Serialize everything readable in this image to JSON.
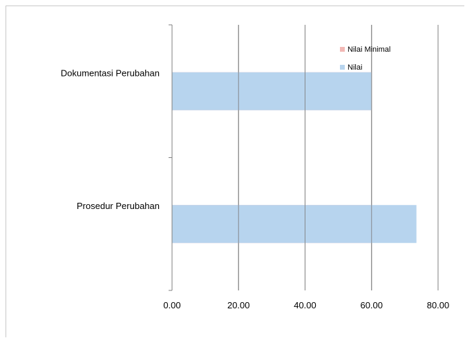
{
  "chart_data": {
    "type": "bar",
    "orientation": "horizontal",
    "categories": [
      "Dokumentasi Perubahan",
      "Prosedur Perubahan"
    ],
    "series": [
      {
        "name": "Nilai Minimal",
        "values": [
          60,
          60
        ],
        "color": "#f2b8b5"
      },
      {
        "name": "Nilai",
        "values": [
          60,
          73.5
        ],
        "color": "#b7d4ee"
      }
    ],
    "xlim": [
      0,
      80
    ],
    "xticks": [
      "0.00",
      "20.00",
      "40.00",
      "60.00",
      "80.00"
    ],
    "xtick_values": [
      0,
      20,
      40,
      60,
      80
    ],
    "grid": true,
    "legend_position": "top-right",
    "title": "",
    "xlabel": "",
    "ylabel": ""
  }
}
